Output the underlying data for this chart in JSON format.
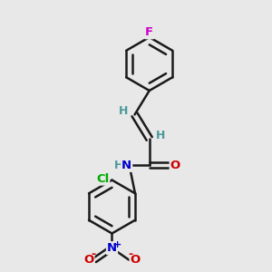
{
  "bg_color": "#e8e8e8",
  "bond_color": "#1a1a1a",
  "bond_lw": 1.8,
  "F_color": "#cc00cc",
  "O_color": "#cc0000",
  "N_color": "#0000cc",
  "Cl_color": "#00aa00",
  "H_color": "#4a9a9a",
  "font_size": 9.5,
  "fig_size": [
    3.0,
    3.0
  ],
  "dpi": 100,
  "xlim": [
    0,
    10
  ],
  "ylim": [
    0,
    10
  ]
}
